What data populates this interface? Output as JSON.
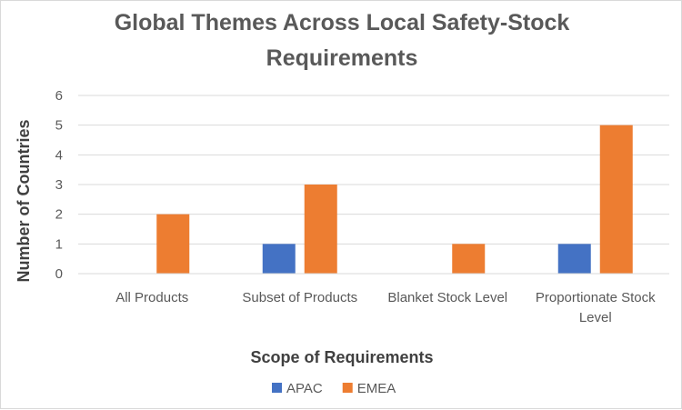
{
  "chart_data": {
    "type": "bar",
    "title_lines": [
      "Global Themes Across Local Safety-Stock",
      "Requirements"
    ],
    "xlabel": "Scope of Requirements",
    "ylabel": "Number of Countries",
    "categories": [
      "All Products",
      "Subset of Products",
      "Blanket Stock Level",
      "Proportionate Stock Level"
    ],
    "category_lines": [
      [
        "All Products"
      ],
      [
        "Subset of Products"
      ],
      [
        "Blanket Stock Level"
      ],
      [
        "Proportionate Stock",
        "Level"
      ]
    ],
    "series": [
      {
        "name": "APAC",
        "color": "#4472c4",
        "values": [
          0,
          1,
          0,
          1
        ]
      },
      {
        "name": "EMEA",
        "color": "#ed7d31",
        "values": [
          2,
          3,
          1,
          5
        ]
      }
    ],
    "ylim": [
      0,
      6
    ],
    "yticks": [
      0,
      1,
      2,
      3,
      4,
      5,
      6
    ],
    "grid": true,
    "legend_position": "bottom"
  }
}
